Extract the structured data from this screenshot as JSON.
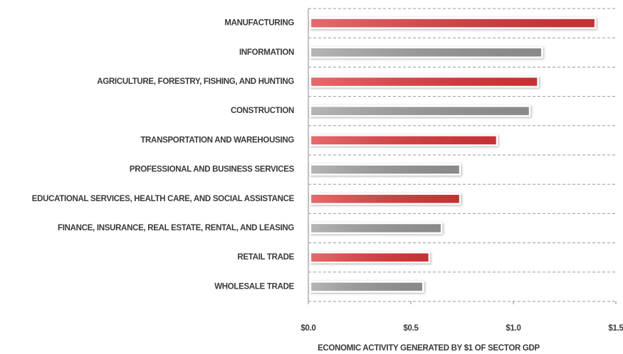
{
  "chart_data": {
    "type": "barh",
    "categories": [
      "MANUFACTURING",
      "INFORMATION",
      "AGRICULTURE, FORESTRY, FISHING, AND HUNTING",
      "CONSTRUCTION",
      "TRANSPORTATION AND WAREHOUSING",
      "PROFESSIONAL AND BUSINESS SERVICES",
      "EDUCATIONAL SERVICES, HEALTH CARE, AND SOCIAL ASSISTANCE",
      "FINANCE, INSURANCE, REAL ESTATE, RENTAL, AND LEASING",
      "RETAIL TRADE",
      "WHOLESALE TRADE"
    ],
    "values": [
      1.4,
      1.14,
      1.12,
      1.08,
      0.92,
      0.74,
      0.74,
      0.65,
      0.59,
      0.56
    ],
    "colors": [
      "#e0383a",
      "#9c9c9c",
      "#e0383a",
      "#9c9c9c",
      "#e0383a",
      "#9c9c9c",
      "#e0383a",
      "#9c9c9c",
      "#e0383a",
      "#9c9c9c"
    ],
    "xlim": [
      0,
      1.5
    ],
    "xticks": [
      {
        "value": 0,
        "label": "$0.0"
      },
      {
        "value": 0.5,
        "label": "$0.5"
      },
      {
        "value": 1,
        "label": "$1.0"
      },
      {
        "value": 1.5,
        "label": "$1.5"
      }
    ],
    "xlabel": "ECONOMIC ACTIVITY GENERATED BY $1 OF SECTOR GDP"
  }
}
